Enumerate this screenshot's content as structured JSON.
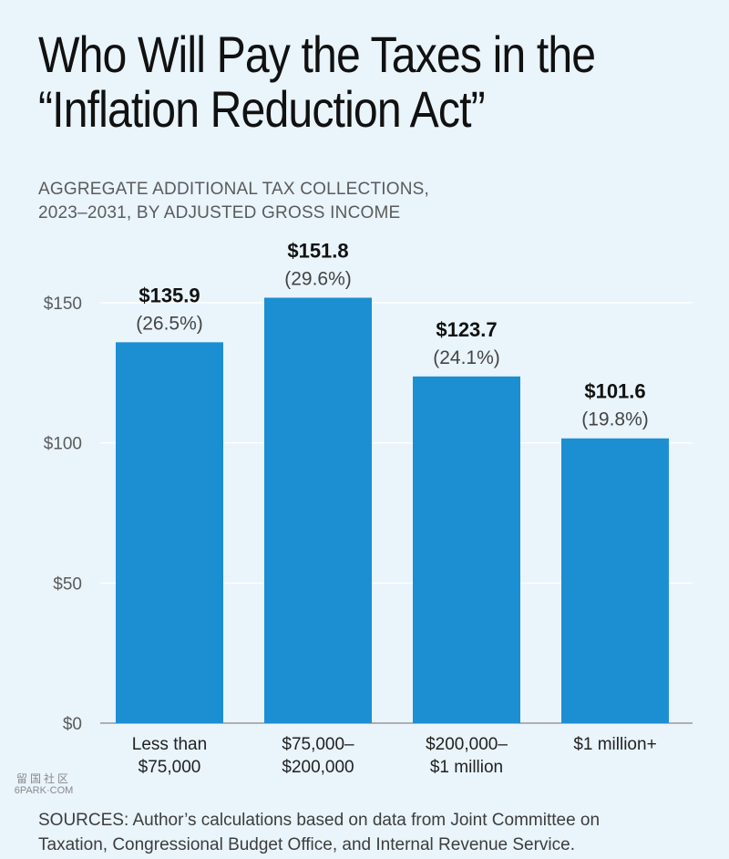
{
  "title_lines": [
    "Who Will Pay the Taxes in the",
    "“Inflation Reduction Act”"
  ],
  "subtitle_lines": [
    "AGGREGATE ADDITIONAL TAX COLLECTIONS,",
    "2023–2031, BY ADJUSTED GROSS INCOME"
  ],
  "source_lines": [
    "SOURCES: Author’s calculations based on data from Joint Committee on",
    "Taxation, Congressional Budget Office, and Internal Revenue Service."
  ],
  "watermark": {
    "glyphs": "留国社区",
    "text": "6PARK·COM"
  },
  "colors": {
    "bar": "#1c8fd3",
    "background": "#e9f4fb",
    "grid": "#ffffff"
  },
  "chart_data": {
    "type": "bar",
    "title": "Who Will Pay the Taxes in the “Inflation Reduction Act”",
    "categories": [
      [
        "Less than",
        "$75,000"
      ],
      [
        "$75,000–",
        "$200,000"
      ],
      [
        "$200,000–",
        "$1 million"
      ],
      [
        "$1 million+"
      ]
    ],
    "values": [
      135.9,
      151.8,
      123.7,
      101.6
    ],
    "value_labels": [
      "$135.9",
      "$151.8",
      "$123.7",
      "$101.6"
    ],
    "share_labels": [
      "(26.5%)",
      "(29.6%)",
      "(24.1%)",
      "(19.8%)"
    ],
    "ylim": [
      0,
      150
    ],
    "yticks": [
      0,
      50,
      100,
      150
    ],
    "ytick_labels": [
      "$0",
      "$50",
      "$100",
      "$150"
    ],
    "grid": true,
    "legend": "none"
  }
}
